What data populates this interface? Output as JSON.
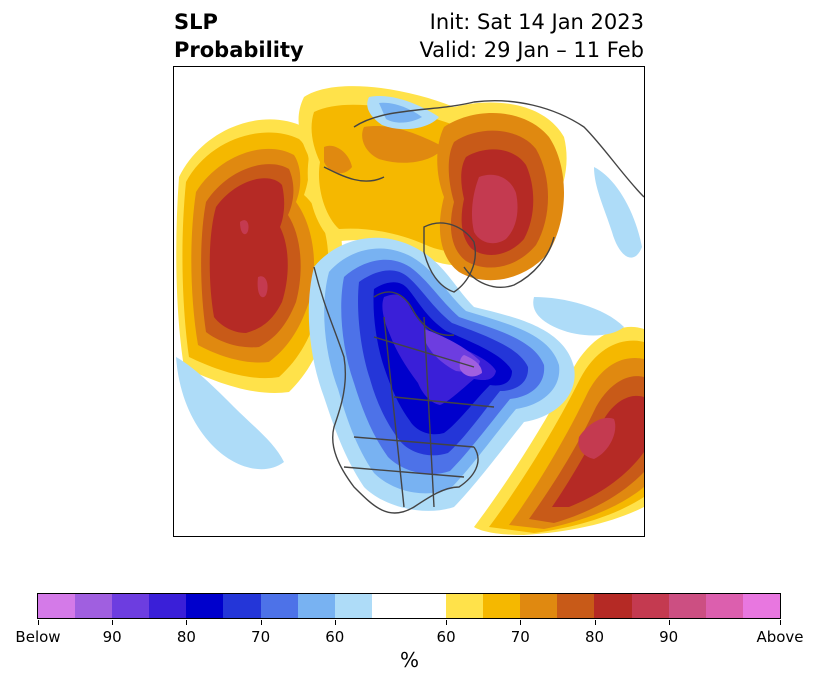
{
  "header": {
    "title_line1": "SLP",
    "title_line2": "Probability",
    "init": "Init: Sat 14 Jan 2023",
    "valid": "Valid: 29 Jan – 11 Feb"
  },
  "colorbar": {
    "unit": "%",
    "colors": [
      "#d47ae8",
      "#a05fe0",
      "#6d3de0",
      "#3a1fd8",
      "#0000cc",
      "#2436d8",
      "#4d72e8",
      "#78b2f2",
      "#aedcf8",
      "#ffffff",
      "#ffe24a",
      "#f5b800",
      "#e08910",
      "#c85a18",
      "#b52a25",
      "#c43a50",
      "#cc4f82",
      "#dc5fae",
      "#e877e0"
    ],
    "tick_labels": [
      "Below",
      "90",
      "80",
      "70",
      "60",
      "60",
      "70",
      "80",
      "90",
      "Above"
    ]
  },
  "map": {
    "region": "Northern Hemisphere polar stereographic",
    "colors": {
      "above_light": "#ffe24a",
      "above_gold": "#f5b800",
      "above_orange": "#e08910",
      "above_dkorange": "#c85a18",
      "above_red": "#b52a25",
      "above_crimson": "#c43a50",
      "below_pale": "#aedcf8",
      "below_light": "#78b2f2",
      "below_mid": "#4d72e8",
      "below_blue": "#2436d8",
      "below_dark": "#0000cc",
      "below_indigo": "#3a1fd8",
      "below_purple": "#6d3de0",
      "below_violet": "#a05fe0",
      "coast": "#444444"
    }
  }
}
